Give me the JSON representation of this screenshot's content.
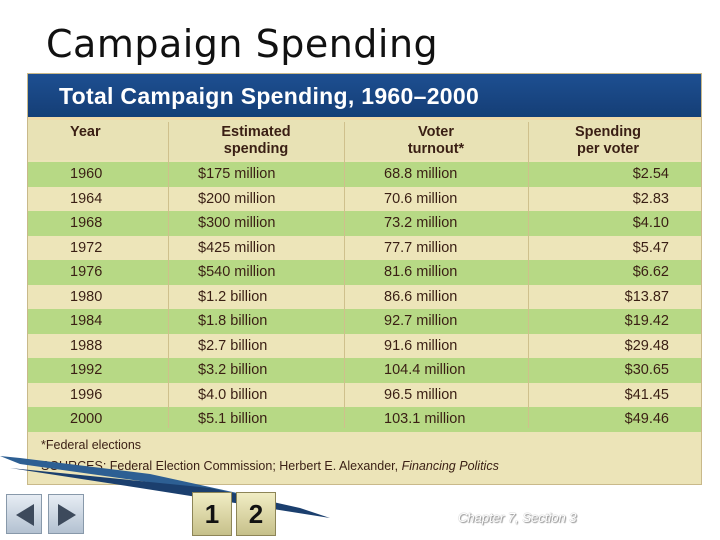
{
  "slide": {
    "title": "Campaign Spending",
    "caption": "Chapter 7, Section 3"
  },
  "table": {
    "title": "Total Campaign Spending, 1960–2000",
    "headers": [
      [
        "Year"
      ],
      [
        "Estimated",
        "spending"
      ],
      [
        "Voter",
        "turnout*"
      ],
      [
        "Spending",
        "per voter"
      ]
    ],
    "rows": [
      [
        "1960",
        "$175 million",
        "68.8 million",
        "$2.54"
      ],
      [
        "1964",
        "$200 million",
        "70.6 million",
        "$2.83"
      ],
      [
        "1968",
        "$300 million",
        "73.2 million",
        "$4.10"
      ],
      [
        "1972",
        "$425 million",
        "77.7 million",
        "$5.47"
      ],
      [
        "1976",
        "$540 million",
        "81.6 million",
        "$6.62"
      ],
      [
        "1980",
        "$1.2 billion",
        "86.6 million",
        "$13.87"
      ],
      [
        "1984",
        "$1.8 billion",
        "92.7 million",
        "$19.42"
      ],
      [
        "1988",
        "$2.7 billion",
        "91.6 million",
        "$29.48"
      ],
      [
        "1992",
        "$3.2 billion",
        "104.4 million",
        "$30.65"
      ],
      [
        "1996",
        "$4.0 billion",
        "96.5 million",
        "$41.45"
      ],
      [
        "2000",
        "$5.1 billion",
        "103.1 million",
        "$49.46"
      ]
    ],
    "footnote": "*Federal elections",
    "sources_prefix": "SOURCES: Federal Election Commission; Herbert E. Alexander, ",
    "sources_title": "Financing Politics"
  },
  "nav": {
    "prev_icon": "prev-arrow-icon",
    "next_icon": "next-arrow-icon",
    "pages": [
      "1",
      "2"
    ]
  },
  "colors": {
    "banner": "#1d4f91",
    "row_green": "#b7d985",
    "row_cream": "#ede5b9",
    "text_brown": "#3a1f14"
  }
}
